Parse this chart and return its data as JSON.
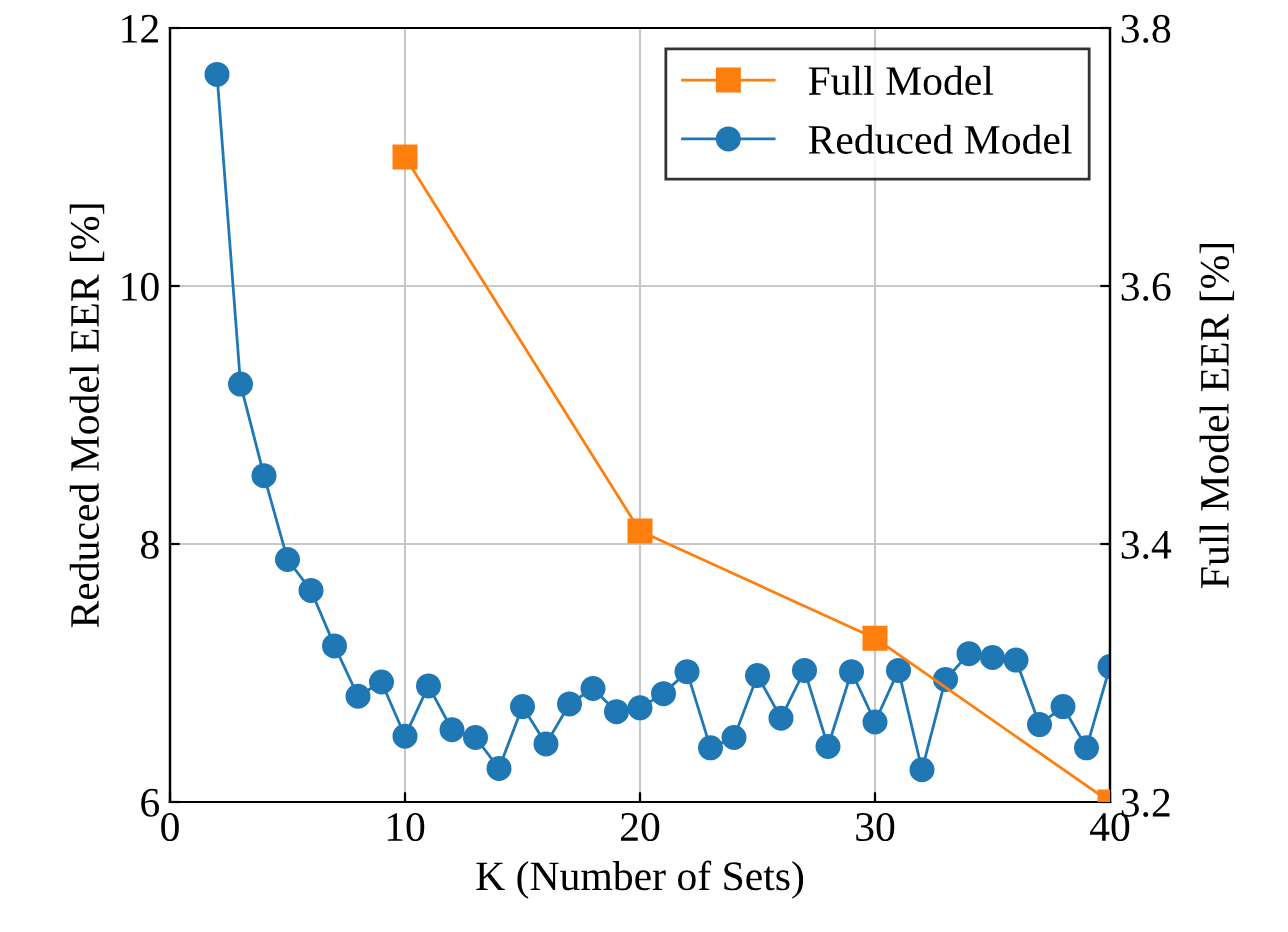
{
  "chart_data": {
    "type": "line",
    "xlabel": "K (Number of Sets)",
    "ylabel": "Reduced Model EER [%]",
    "y2label": "Full Model EER [%]",
    "xlim": [
      0,
      40
    ],
    "xticks": [
      0,
      10,
      20,
      30,
      40
    ],
    "ylim": [
      6,
      12
    ],
    "yticks": [
      6,
      8,
      10,
      12
    ],
    "y2lim": [
      3.2,
      3.8
    ],
    "y2ticks": [
      3.2,
      3.4,
      3.6,
      3.8
    ],
    "grid": true,
    "legend": "top right",
    "series": [
      {
        "name": "Full Model",
        "color": "#ff7f0e",
        "axis": "y2",
        "marker": "square",
        "x": [
          10,
          20,
          30,
          40
        ],
        "values": [
          3.7,
          3.41,
          3.327,
          3.2
        ]
      },
      {
        "name": "Reduced Model",
        "color": "#1f77b4",
        "marker": "circle",
        "x": [
          2,
          3,
          4,
          5,
          6,
          7,
          8,
          9,
          10,
          11,
          12,
          13,
          14,
          15,
          16,
          17,
          18,
          19,
          20,
          21,
          22,
          23,
          24,
          25,
          26,
          27,
          28,
          29,
          30,
          31,
          32,
          33,
          34,
          35,
          36,
          37,
          38,
          39,
          40
        ],
        "values": [
          11.64,
          9.24,
          8.53,
          7.88,
          7.64,
          7.21,
          6.82,
          6.93,
          6.51,
          6.9,
          6.56,
          6.5,
          6.26,
          6.74,
          6.45,
          6.76,
          6.88,
          6.7,
          6.73,
          6.84,
          7.01,
          6.42,
          6.5,
          6.98,
          6.65,
          7.02,
          6.43,
          7.01,
          6.62,
          7.02,
          6.25,
          6.95,
          7.15,
          7.12,
          7.1,
          6.6,
          6.74,
          6.42,
          7.05
        ]
      }
    ]
  }
}
